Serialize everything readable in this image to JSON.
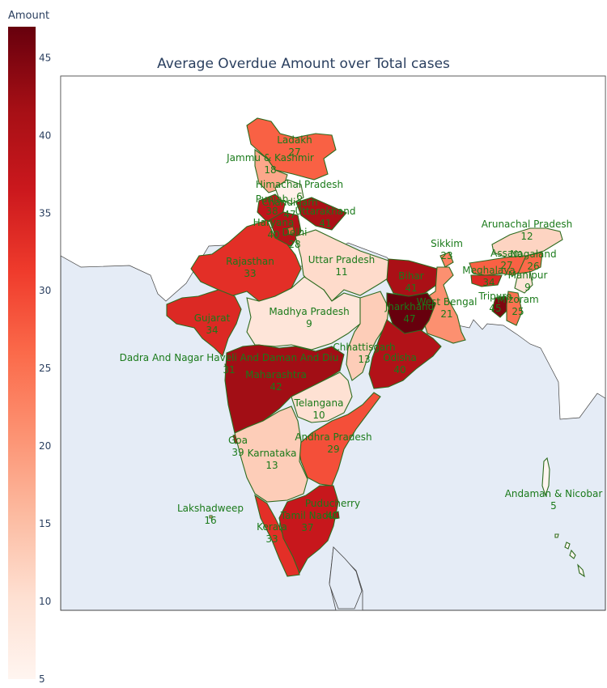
{
  "chart_data": {
    "type": "choropleth",
    "title": "Average Overdue Amount over Total cases",
    "colorbar": {
      "title": "Amount",
      "min": 5,
      "max": 47,
      "ticks": [
        5,
        10,
        15,
        20,
        25,
        30,
        35,
        40,
        45
      ],
      "colorscale": "Reds"
    },
    "regions": [
      {
        "name": "Ladakh",
        "value": 27
      },
      {
        "name": "Jammu & Kashmir",
        "value": 18
      },
      {
        "name": "Himachal Pradesh",
        "value": 6
      },
      {
        "name": "Punjab",
        "value": 38
      },
      {
        "name": "Chandigarh",
        "value": 47
      },
      {
        "name": "Uttarakhand",
        "value": 41
      },
      {
        "name": "Haryana",
        "value": 40
      },
      {
        "name": "Delhi",
        "value": 28
      },
      {
        "name": "Rajasthan",
        "value": 33
      },
      {
        "name": "Uttar Pradesh",
        "value": 11
      },
      {
        "name": "Bihar",
        "value": 41
      },
      {
        "name": "Sikkim",
        "value": 23
      },
      {
        "name": "Arunachal Pradesh",
        "value": 12
      },
      {
        "name": "Assam",
        "value": 27
      },
      {
        "name": "Nagaland",
        "value": 26
      },
      {
        "name": "Meghalaya",
        "value": 34
      },
      {
        "name": "Manipur",
        "value": 9
      },
      {
        "name": "Tripura",
        "value": 45
      },
      {
        "name": "Mizoram",
        "value": 25
      },
      {
        "name": "West Bengal",
        "value": 21
      },
      {
        "name": "Jharkhand",
        "value": 47
      },
      {
        "name": "Gujarat",
        "value": 34
      },
      {
        "name": "Madhya Pradesh",
        "value": 9
      },
      {
        "name": "Chhattisgarh",
        "value": 13
      },
      {
        "name": "Odisha",
        "value": 40
      },
      {
        "name": "Dadra And Nagar Haveli And Daman And Diu",
        "value": 31
      },
      {
        "name": "Maharashtra",
        "value": 42
      },
      {
        "name": "Telangana",
        "value": 10
      },
      {
        "name": "Andhra Pradesh",
        "value": 29
      },
      {
        "name": "Goa",
        "value": 39
      },
      {
        "name": "Karnataka",
        "value": 13
      },
      {
        "name": "Lakshadweep",
        "value": 16
      },
      {
        "name": "Puducherry",
        "value": 41
      },
      {
        "name": "Tamil Nadu",
        "value": 37
      },
      {
        "name": "Kerala",
        "value": 33
      },
      {
        "name": "Andaman & Nicobar",
        "value": 5
      }
    ]
  }
}
